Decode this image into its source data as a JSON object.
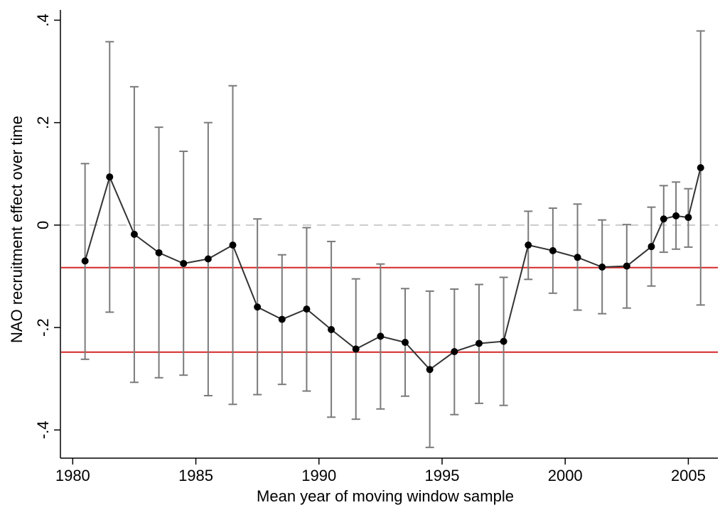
{
  "chart_data": {
    "type": "scatter",
    "xlabel": "Mean year of moving window sample",
    "ylabel": "NAO recruitment effect over time",
    "xlim": [
      1979.5,
      2006.2
    ],
    "ylim": [
      -0.455,
      0.42
    ],
    "xticks": [
      {
        "value": 1980,
        "label": "1980"
      },
      {
        "value": 1985,
        "label": "1985"
      },
      {
        "value": 1990,
        "label": "1990"
      },
      {
        "value": 1995,
        "label": "1995"
      },
      {
        "value": 2000,
        "label": "2000"
      },
      {
        "value": 2005,
        "label": "2005"
      }
    ],
    "yticks": [
      {
        "value": 0.4,
        "label": ".4"
      },
      {
        "value": 0.2,
        "label": ".2"
      },
      {
        "value": 0,
        "label": "0"
      },
      {
        "value": -0.2,
        "label": "-.2"
      },
      {
        "value": -0.4,
        "label": "-.4"
      }
    ],
    "series": [
      {
        "x": [
          1980.5,
          1981.5,
          1982.5,
          1983.5,
          1984.5,
          1985.5,
          1986.5,
          1987.5,
          1988.5,
          1989.5,
          1990.5,
          1991.5,
          1992.5,
          1993.5,
          1994.5,
          1995.5,
          1996.5,
          1997.5,
          1998.5,
          1999.5,
          2000.5,
          2001.5,
          2002.5,
          2003.5,
          2004.0,
          2004.5,
          2005.0,
          2005.5
        ],
        "y": [
          -0.07,
          0.094,
          -0.018,
          -0.054,
          -0.075,
          -0.066,
          -0.039,
          -0.16,
          -0.184,
          -0.164,
          -0.204,
          -0.242,
          -0.217,
          -0.229,
          -0.282,
          -0.247,
          -0.231,
          -0.227,
          -0.039,
          -0.05,
          -0.063,
          -0.082,
          -0.08,
          -0.042,
          0.012,
          0.018,
          0.015,
          0.112
        ],
        "ci_low": [
          -0.262,
          -0.17,
          -0.307,
          -0.298,
          -0.293,
          -0.333,
          -0.35,
          -0.331,
          -0.311,
          -0.324,
          -0.375,
          -0.379,
          -0.359,
          -0.334,
          -0.434,
          -0.37,
          -0.348,
          -0.352,
          -0.106,
          -0.133,
          -0.166,
          -0.173,
          -0.162,
          -0.119,
          -0.053,
          -0.047,
          -0.043,
          -0.156
        ],
        "ci_high": [
          0.12,
          0.358,
          0.27,
          0.191,
          0.144,
          0.2,
          0.272,
          0.012,
          -0.058,
          -0.005,
          -0.032,
          -0.105,
          -0.076,
          -0.124,
          -0.129,
          -0.125,
          -0.116,
          -0.102,
          0.027,
          0.033,
          0.041,
          0.01,
          0.001,
          0.035,
          0.077,
          0.084,
          0.071,
          0.379
        ],
        "color": "#000000",
        "line_color": "#333333",
        "errorbar_color": "#7a7a7a"
      }
    ],
    "reference_lines": [
      {
        "y": 0,
        "color": "#cccccc",
        "style": "dashed"
      },
      {
        "y": -0.083,
        "color": "#d62728",
        "style": "solid"
      },
      {
        "y": -0.248,
        "color": "#d62728",
        "style": "solid"
      }
    ],
    "grid": false,
    "legend": "none"
  }
}
